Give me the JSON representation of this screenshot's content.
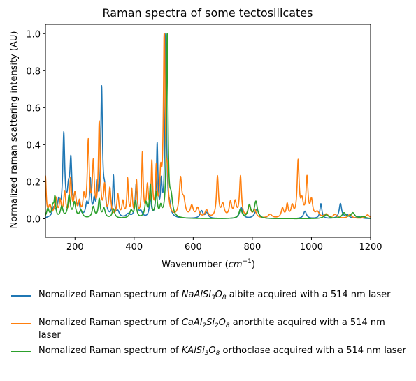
{
  "chart_data": {
    "type": "line",
    "title": "Raman spectra of some tectosilicates",
    "xlabel_prefix": "Wavenumber (",
    "xlabel_unit": "cm",
    "xlabel_exp": "−1",
    "xlabel_suffix": ")",
    "ylabel": "Normalized raman scattering intensity (AU)",
    "xlim": [
      100,
      1200
    ],
    "ylim": [
      -0.1,
      1.05
    ],
    "xticks": [
      200,
      400,
      600,
      800,
      1000,
      1200
    ],
    "yticks": [
      0.0,
      0.2,
      0.4,
      0.6,
      0.8,
      1.0
    ],
    "grid": false,
    "legend_position": "below-plot",
    "series": [
      {
        "color": "#1f77b4",
        "legend_text": "Nomalized Raman spectrum of {f} albite acquired with a 514 nm laser",
        "formula": [
          [
            "Na",
            ""
          ],
          [
            "Al",
            ""
          ],
          [
            "Si",
            "3"
          ],
          [
            "O",
            "8"
          ]
        ],
        "baseline": 0.0,
        "peaks": [
          [
            128,
            0.05,
            6
          ],
          [
            145,
            0.08,
            5
          ],
          [
            162,
            0.44,
            4
          ],
          [
            178,
            0.12,
            5
          ],
          [
            186,
            0.28,
            4
          ],
          [
            200,
            0.1,
            5
          ],
          [
            213,
            0.06,
            5
          ],
          [
            240,
            0.07,
            5
          ],
          [
            252,
            0.19,
            3
          ],
          [
            265,
            0.08,
            4
          ],
          [
            276,
            0.15,
            3
          ],
          [
            290,
            0.68,
            3.5
          ],
          [
            300,
            0.12,
            5
          ],
          [
            330,
            0.22,
            3
          ],
          [
            345,
            0.03,
            6
          ],
          [
            380,
            0.02,
            8
          ],
          [
            407,
            0.18,
            4
          ],
          [
            423,
            0.03,
            6
          ],
          [
            455,
            0.1,
            4
          ],
          [
            478,
            0.39,
            3
          ],
          [
            492,
            0.17,
            3
          ],
          [
            507,
            1.0,
            3
          ],
          [
            520,
            0.05,
            5
          ],
          [
            628,
            0.04,
            6
          ],
          [
            646,
            0.03,
            6
          ],
          [
            762,
            0.06,
            6
          ],
          [
            815,
            0.05,
            8
          ],
          [
            978,
            0.04,
            6
          ],
          [
            1032,
            0.08,
            4
          ],
          [
            1098,
            0.08,
            5
          ],
          [
            1120,
            0.02,
            8
          ],
          [
            1160,
            0.01,
            10
          ]
        ]
      },
      {
        "color": "#ff7f0e",
        "legend_text": "Nomalized Raman spectrum of {f} anorthite acquired with a 514 nm laser",
        "formula": [
          [
            "Ca",
            ""
          ],
          [
            "Al",
            "2"
          ],
          [
            "Si",
            "2"
          ],
          [
            "O",
            "8"
          ]
        ],
        "baseline": 0.0,
        "peaks": [
          [
            100,
            0.22,
            3
          ],
          [
            115,
            0.06,
            6
          ],
          [
            135,
            0.1,
            5
          ],
          [
            150,
            0.08,
            4
          ],
          [
            165,
            0.13,
            4
          ],
          [
            185,
            0.2,
            4
          ],
          [
            200,
            0.12,
            5
          ],
          [
            215,
            0.07,
            4
          ],
          [
            230,
            0.1,
            4
          ],
          [
            245,
            0.4,
            4
          ],
          [
            262,
            0.28,
            4
          ],
          [
            282,
            0.5,
            3.5
          ],
          [
            300,
            0.16,
            4
          ],
          [
            318,
            0.15,
            4
          ],
          [
            345,
            0.12,
            4
          ],
          [
            362,
            0.08,
            4
          ],
          [
            378,
            0.2,
            3
          ],
          [
            392,
            0.14,
            3
          ],
          [
            408,
            0.19,
            3
          ],
          [
            428,
            0.34,
            3
          ],
          [
            445,
            0.16,
            4
          ],
          [
            460,
            0.28,
            3
          ],
          [
            475,
            0.25,
            3
          ],
          [
            490,
            0.2,
            4
          ],
          [
            502,
            1.0,
            3.5
          ],
          [
            512,
            0.18,
            4
          ],
          [
            557,
            0.2,
            5
          ],
          [
            568,
            0.08,
            6
          ],
          [
            595,
            0.06,
            6
          ],
          [
            615,
            0.05,
            6
          ],
          [
            645,
            0.04,
            6
          ],
          [
            682,
            0.22,
            4
          ],
          [
            700,
            0.07,
            6
          ],
          [
            726,
            0.08,
            5
          ],
          [
            742,
            0.08,
            5
          ],
          [
            760,
            0.22,
            4
          ],
          [
            790,
            0.06,
            6
          ],
          [
            808,
            0.04,
            6
          ],
          [
            860,
            0.02,
            8
          ],
          [
            902,
            0.05,
            5
          ],
          [
            918,
            0.07,
            4
          ],
          [
            935,
            0.06,
            5
          ],
          [
            955,
            0.3,
            4
          ],
          [
            968,
            0.08,
            5
          ],
          [
            985,
            0.21,
            4
          ],
          [
            1000,
            0.09,
            5
          ],
          [
            1020,
            0.03,
            8
          ],
          [
            1050,
            0.02,
            8
          ],
          [
            1080,
            0.02,
            8
          ],
          [
            1130,
            0.02,
            8
          ],
          [
            1190,
            0.02,
            8
          ]
        ]
      },
      {
        "color": "#2ca02c",
        "legend_text": "Nomalized Raman spectrum of {f} orthoclase acquired with a 514 nm laser",
        "formula": [
          [
            "K",
            ""
          ],
          [
            "Al",
            ""
          ],
          [
            "Si",
            "3"
          ],
          [
            "O",
            "8"
          ]
        ],
        "baseline": 0.0,
        "peaks": [
          [
            108,
            0.05,
            5
          ],
          [
            125,
            0.06,
            5
          ],
          [
            132,
            0.1,
            3
          ],
          [
            155,
            0.06,
            5
          ],
          [
            180,
            0.12,
            5
          ],
          [
            198,
            0.08,
            5
          ],
          [
            220,
            0.04,
            6
          ],
          [
            262,
            0.06,
            5
          ],
          [
            282,
            0.1,
            4
          ],
          [
            298,
            0.05,
            5
          ],
          [
            330,
            0.05,
            5
          ],
          [
            390,
            0.04,
            6
          ],
          [
            405,
            0.09,
            4
          ],
          [
            440,
            0.08,
            5
          ],
          [
            455,
            0.17,
            3.5
          ],
          [
            475,
            0.13,
            4
          ],
          [
            490,
            0.05,
            4
          ],
          [
            512,
            1.0,
            3
          ],
          [
            525,
            0.1,
            6
          ],
          [
            760,
            0.05,
            6
          ],
          [
            790,
            0.07,
            6
          ],
          [
            812,
            0.09,
            6
          ],
          [
            1050,
            0.02,
            10
          ],
          [
            1110,
            0.03,
            8
          ],
          [
            1140,
            0.03,
            8
          ],
          [
            1175,
            0.01,
            10
          ]
        ]
      }
    ]
  }
}
